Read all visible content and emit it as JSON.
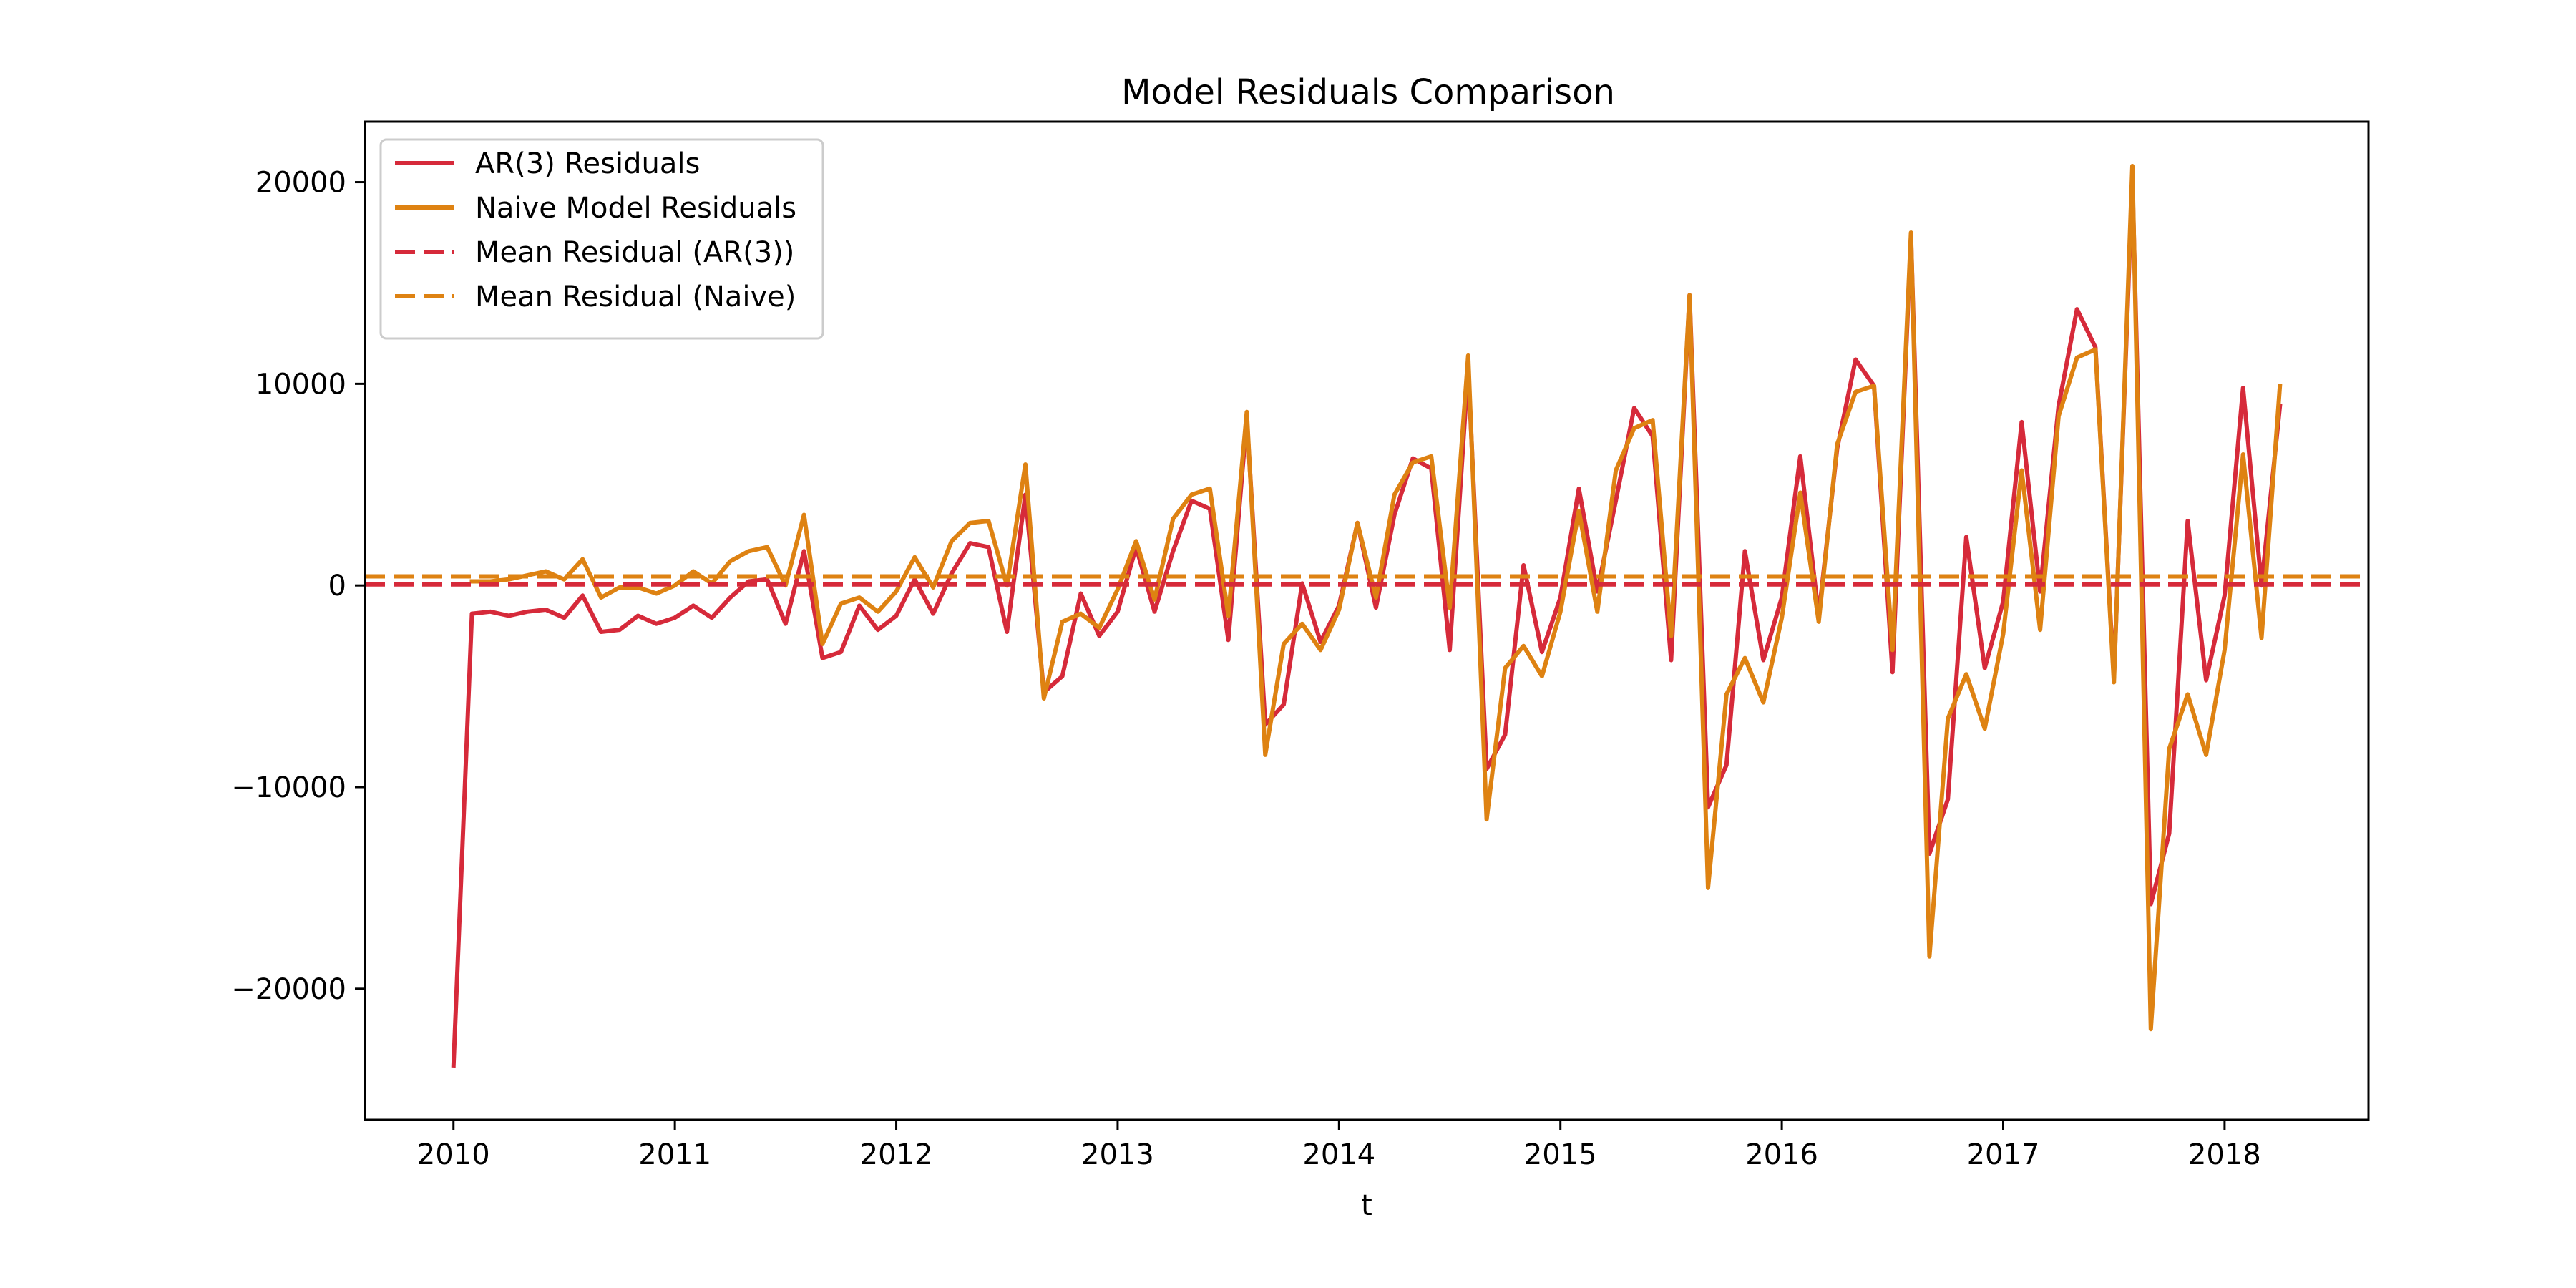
{
  "chart_data": {
    "type": "line",
    "title": "Model Residuals Comparison",
    "xlabel": "t",
    "ylabel": "",
    "xlim": [
      2009.6,
      2018.65
    ],
    "ylim": [
      -26500,
      23000
    ],
    "x_ticks": [
      2010,
      2011,
      2012,
      2013,
      2014,
      2015,
      2016,
      2017,
      2018
    ],
    "y_ticks": [
      -20000,
      -10000,
      0,
      10000,
      20000
    ],
    "y_tick_labels": [
      "−20000",
      "−10000",
      "0",
      "10000",
      "20000"
    ],
    "x_start": 2010,
    "grid": false,
    "legend_position": "upper-left",
    "series": [
      {
        "name": "AR(3) Residuals",
        "color": "#d62a3a",
        "style": "solid",
        "values": [
          -23800,
          -1400,
          -1300,
          -1500,
          -1300,
          -1200,
          -1600,
          -500,
          -2300,
          -2200,
          -1500,
          -1900,
          -1600,
          -1000,
          -1600,
          -600,
          200,
          300,
          -1900,
          1700,
          -3600,
          -3300,
          -1000,
          -2200,
          -1500,
          300,
          -1400,
          600,
          2100,
          1900,
          -2300,
          4500,
          -5300,
          -4500,
          -400,
          -2500,
          -1300,
          1900,
          -1300,
          1700,
          4200,
          3800,
          -2700,
          8300,
          -6900,
          -5900,
          100,
          -2800,
          -1000,
          3100,
          -1100,
          3500,
          6300,
          5800,
          -3200,
          10800,
          -9100,
          -7400,
          1000,
          -3300,
          -600,
          4800,
          -300,
          4200,
          8800,
          7400,
          -3700,
          14400,
          -11000,
          -8900,
          1700,
          -3700,
          -600,
          6400,
          -1500,
          6800,
          11200,
          9900,
          -4300,
          17300,
          -13300,
          -10600,
          2400,
          -4100,
          -800,
          8100,
          -300,
          8900,
          13700,
          11800,
          -4600,
          20200,
          -15800,
          -12300,
          3200,
          -4700,
          -500,
          9800,
          0,
          8900
        ]
      },
      {
        "name": "Naive Model Residuals",
        "color": "#de8212",
        "style": "solid",
        "values": [
          null,
          200,
          200,
          300,
          500,
          700,
          300,
          1300,
          -600,
          -100,
          -100,
          -400,
          0,
          700,
          100,
          1200,
          1700,
          1900,
          0,
          3500,
          -2900,
          -900,
          -600,
          -1300,
          -300,
          1400,
          -100,
          2200,
          3100,
          3200,
          0,
          6000,
          -5600,
          -1800,
          -1400,
          -2100,
          -200,
          2200,
          -700,
          3300,
          4500,
          4800,
          -1500,
          8600,
          -8400,
          -2900,
          -1900,
          -3200,
          -1200,
          3100,
          -600,
          4500,
          6100,
          6400,
          -1100,
          11400,
          -11600,
          -4100,
          -3000,
          -4500,
          -1300,
          3700,
          -1300,
          5700,
          7800,
          8200,
          -2500,
          14400,
          -15000,
          -5400,
          -3600,
          -5800,
          -1600,
          4600,
          -1800,
          7000,
          9600,
          9900,
          -3200,
          17500,
          -18400,
          -6600,
          -4400,
          -7100,
          -2400,
          5700,
          -2200,
          8400,
          11300,
          11700,
          -4800,
          20800,
          -22000,
          -8100,
          -5400,
          -8400,
          -3200,
          6500,
          -2600,
          9900
        ]
      },
      {
        "name": "Mean Residual (AR(3))",
        "color": "#d62a3a",
        "style": "dashed",
        "constant": 50
      },
      {
        "name": "Mean Residual (Naive)",
        "color": "#de8212",
        "style": "dashed",
        "constant": 450
      }
    ]
  }
}
